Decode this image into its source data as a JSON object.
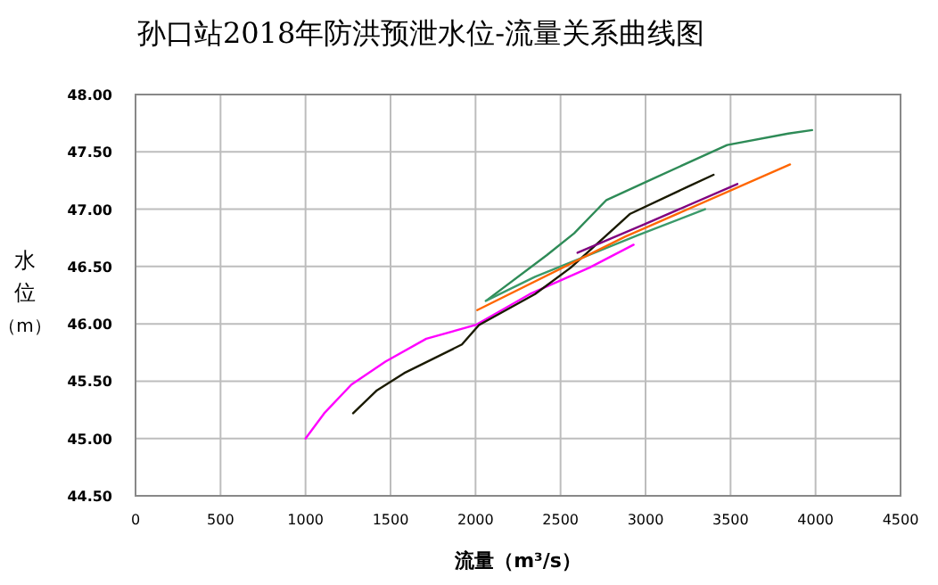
{
  "chart_data": {
    "type": "line",
    "title": "孙口站2018年防洪预泄水位-流量关系曲线图",
    "xlabel": "流量（m³/s）",
    "ylabel": "水位（m）",
    "xlim": [
      0,
      4500
    ],
    "xticks": [
      0,
      500,
      1000,
      1500,
      2000,
      2500,
      3000,
      3500,
      4000,
      4500
    ],
    "ylim": [
      44.5,
      48
    ],
    "yticks": [
      {
        "value": 44.5,
        "label": "44.50"
      },
      {
        "value": 45,
        "label": "45.00"
      },
      {
        "value": 45.5,
        "label": "45.50"
      },
      {
        "value": 46,
        "label": "46.00"
      },
      {
        "value": 46.5,
        "label": "46.50"
      },
      {
        "value": 47,
        "label": "47.00"
      },
      {
        "value": 47.5,
        "label": "47.50"
      },
      {
        "value": 48,
        "label": "48.00"
      }
    ],
    "grid": true,
    "marker": "none",
    "line_style": "solid",
    "series": [
      {
        "color": "#ff00ff",
        "x": [
          1000,
          1110,
          1270,
          1470,
          1710,
          2000,
          2320,
          2670,
          2930
        ],
        "values": [
          45.0,
          45.22,
          45.47,
          45.67,
          45.87,
          45.99,
          46.26,
          46.49,
          46.69
        ]
      },
      {
        "color": "#1a1a00",
        "x": [
          1280,
          1420,
          1580,
          1920,
          2020,
          2350,
          2560,
          2910,
          3240,
          3400
        ],
        "values": [
          45.22,
          45.42,
          45.57,
          45.82,
          45.99,
          46.26,
          46.49,
          46.96,
          47.19,
          47.3
        ]
      },
      {
        "color": "#2e8b57",
        "x": [
          2070,
          2420,
          2580,
          2770,
          3050,
          3480,
          3840,
          3980
        ],
        "values": [
          46.21,
          46.6,
          46.79,
          47.08,
          47.27,
          47.56,
          47.66,
          47.69
        ]
      },
      {
        "color": "#3a9a6a",
        "x": [
          2060,
          2350,
          2950,
          3350
        ],
        "values": [
          46.2,
          46.41,
          46.77,
          47.0
        ]
      },
      {
        "color": "#ff6600",
        "x": [
          2010,
          2880,
          3850
        ],
        "values": [
          46.12,
          46.76,
          47.39
        ]
      },
      {
        "color": "#800080",
        "x": [
          2600,
          2980,
          3540
        ],
        "values": [
          46.62,
          46.86,
          47.22
        ]
      }
    ]
  }
}
